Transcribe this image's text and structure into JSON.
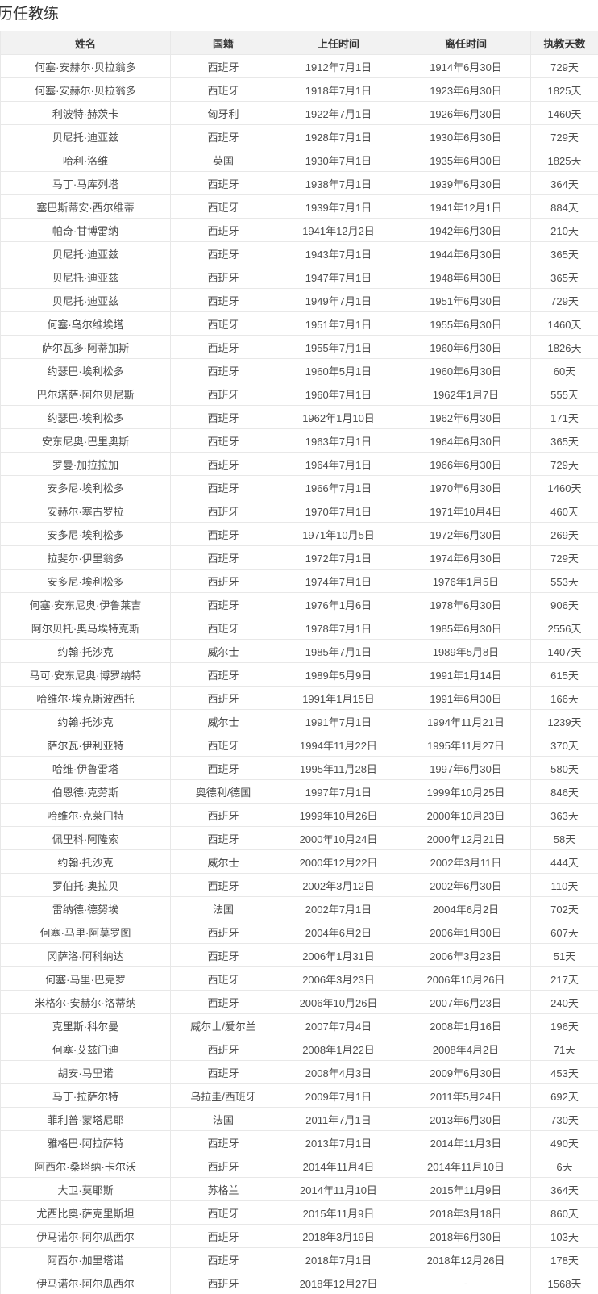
{
  "title": "历任教练",
  "colors": {
    "header_bg": "#f2f2f2",
    "border": "#e8e8e8",
    "cell_text": "#4d4d4d",
    "header_text": "#333333"
  },
  "table": {
    "headers": [
      "姓名",
      "国籍",
      "上任时间",
      "离任时间",
      "执教天数"
    ],
    "rows": [
      [
        "何塞·安赫尔·贝拉翁多",
        "西班牙",
        "1912年7月1日",
        "1914年6月30日",
        "729天"
      ],
      [
        "何塞·安赫尔·贝拉翁多",
        "西班牙",
        "1918年7月1日",
        "1923年6月30日",
        "1825天"
      ],
      [
        "利波特·赫茨卡",
        "匈牙利",
        "1922年7月1日",
        "1926年6月30日",
        "1460天"
      ],
      [
        "贝尼托·迪亚兹",
        "西班牙",
        "1928年7月1日",
        "1930年6月30日",
        "729天"
      ],
      [
        "哈利·洛维",
        "英国",
        "1930年7月1日",
        "1935年6月30日",
        "1825天"
      ],
      [
        "马丁·马库列塔",
        "西班牙",
        "1938年7月1日",
        "1939年6月30日",
        "364天"
      ],
      [
        "塞巴斯蒂安·西尔维蒂",
        "西班牙",
        "1939年7月1日",
        "1941年12月1日",
        "884天"
      ],
      [
        "帕奇·甘博雷纳",
        "西班牙",
        "1941年12月2日",
        "1942年6月30日",
        "210天"
      ],
      [
        "贝尼托·迪亚兹",
        "西班牙",
        "1943年7月1日",
        "1944年6月30日",
        "365天"
      ],
      [
        "贝尼托·迪亚兹",
        "西班牙",
        "1947年7月1日",
        "1948年6月30日",
        "365天"
      ],
      [
        "贝尼托·迪亚兹",
        "西班牙",
        "1949年7月1日",
        "1951年6月30日",
        "729天"
      ],
      [
        "何塞·乌尔维埃塔",
        "西班牙",
        "1951年7月1日",
        "1955年6月30日",
        "1460天"
      ],
      [
        "萨尔瓦多·阿蒂加斯",
        "西班牙",
        "1955年7月1日",
        "1960年6月30日",
        "1826天"
      ],
      [
        "约瑟巴·埃利松多",
        "西班牙",
        "1960年5月1日",
        "1960年6月30日",
        "60天"
      ],
      [
        "巴尔塔萨·阿尔贝尼斯",
        "西班牙",
        "1960年7月1日",
        "1962年1月7日",
        "555天"
      ],
      [
        "约瑟巴·埃利松多",
        "西班牙",
        "1962年1月10日",
        "1962年6月30日",
        "171天"
      ],
      [
        "安东尼奥·巴里奥斯",
        "西班牙",
        "1963年7月1日",
        "1964年6月30日",
        "365天"
      ],
      [
        "罗曼·加拉拉加",
        "西班牙",
        "1964年7月1日",
        "1966年6月30日",
        "729天"
      ],
      [
        "安多尼·埃利松多",
        "西班牙",
        "1966年7月1日",
        "1970年6月30日",
        "1460天"
      ],
      [
        "安赫尔·塞古罗拉",
        "西班牙",
        "1970年7月1日",
        "1971年10月4日",
        "460天"
      ],
      [
        "安多尼·埃利松多",
        "西班牙",
        "1971年10月5日",
        "1972年6月30日",
        "269天"
      ],
      [
        "拉斐尔·伊里翁多",
        "西班牙",
        "1972年7月1日",
        "1974年6月30日",
        "729天"
      ],
      [
        "安多尼·埃利松多",
        "西班牙",
        "1974年7月1日",
        "1976年1月5日",
        "553天"
      ],
      [
        "何塞·安东尼奥·伊鲁莱吉",
        "西班牙",
        "1976年1月6日",
        "1978年6月30日",
        "906天"
      ],
      [
        "阿尔贝托·奥马埃特克斯",
        "西班牙",
        "1978年7月1日",
        "1985年6月30日",
        "2556天"
      ],
      [
        "约翰·托沙克",
        "威尔士",
        "1985年7月1日",
        "1989年5月8日",
        "1407天"
      ],
      [
        "马可·安东尼奥·博罗纳特",
        "西班牙",
        "1989年5月9日",
        "1991年1月14日",
        "615天"
      ],
      [
        "哈维尔·埃克斯波西托",
        "西班牙",
        "1991年1月15日",
        "1991年6月30日",
        "166天"
      ],
      [
        "约翰·托沙克",
        "威尔士",
        "1991年7月1日",
        "1994年11月21日",
        "1239天"
      ],
      [
        "萨尔瓦·伊利亚特",
        "西班牙",
        "1994年11月22日",
        "1995年11月27日",
        "370天"
      ],
      [
        "哈维·伊鲁雷塔",
        "西班牙",
        "1995年11月28日",
        "1997年6月30日",
        "580天"
      ],
      [
        "伯恩德·克劳斯",
        "奥德利/德国",
        "1997年7月1日",
        "1999年10月25日",
        "846天"
      ],
      [
        "哈维尔·克莱门特",
        "西班牙",
        "1999年10月26日",
        "2000年10月23日",
        "363天"
      ],
      [
        "佩里科·阿隆索",
        "西班牙",
        "2000年10月24日",
        "2000年12月21日",
        "58天"
      ],
      [
        "约翰·托沙克",
        "威尔士",
        "2000年12月22日",
        "2002年3月11日",
        "444天"
      ],
      [
        "罗伯托·奥拉贝",
        "西班牙",
        "2002年3月12日",
        "2002年6月30日",
        "110天"
      ],
      [
        "雷纳德·德努埃",
        "法国",
        "2002年7月1日",
        "2004年6月2日",
        "702天"
      ],
      [
        "何塞·马里·阿莫罗图",
        "西班牙",
        "2004年6月2日",
        "2006年1月30日",
        "607天"
      ],
      [
        "冈萨洛·阿科纳达",
        "西班牙",
        "2006年1月31日",
        "2006年3月23日",
        "51天"
      ],
      [
        "何塞·马里·巴克罗",
        "西班牙",
        "2006年3月23日",
        "2006年10月26日",
        "217天"
      ],
      [
        "米格尔·安赫尔·洛蒂纳",
        "西班牙",
        "2006年10月26日",
        "2007年6月23日",
        "240天"
      ],
      [
        "克里斯·科尔曼",
        "威尔士/爱尔兰",
        "2007年7月4日",
        "2008年1月16日",
        "196天"
      ],
      [
        "何塞·艾兹门迪",
        "西班牙",
        "2008年1月22日",
        "2008年4月2日",
        "71天"
      ],
      [
        "胡安·马里诺",
        "西班牙",
        "2008年4月3日",
        "2009年6月30日",
        "453天"
      ],
      [
        "马丁·拉萨尔特",
        "乌拉圭/西班牙",
        "2009年7月1日",
        "2011年5月24日",
        "692天"
      ],
      [
        "菲利普·蒙塔尼耶",
        "法国",
        "2011年7月1日",
        "2013年6月30日",
        "730天"
      ],
      [
        "雅格巴·阿拉萨特",
        "西班牙",
        "2013年7月1日",
        "2014年11月3日",
        "490天"
      ],
      [
        "阿西尔·桑塔纳·卡尔沃",
        "西班牙",
        "2014年11月4日",
        "2014年11月10日",
        "6天"
      ],
      [
        "大卫·莫耶斯",
        "苏格兰",
        "2014年11月10日",
        "2015年11月9日",
        "364天"
      ],
      [
        "尤西比奥·萨克里斯坦",
        "西班牙",
        "2015年11月9日",
        "2018年3月18日",
        "860天"
      ],
      [
        "伊马诺尔·阿尔瓜西尔",
        "西班牙",
        "2018年3月19日",
        "2018年6月30日",
        "103天"
      ],
      [
        "阿西尔·加里塔诺",
        "西班牙",
        "2018年7月1日",
        "2018年12月26日",
        "178天"
      ],
      [
        "伊马诺尔·阿尔瓜西尔",
        "西班牙",
        "2018年12月27日",
        "-",
        "1568天"
      ]
    ],
    "cell_names": [
      "coach-name",
      "nationality",
      "start-date",
      "end-date",
      "days-coached"
    ]
  }
}
